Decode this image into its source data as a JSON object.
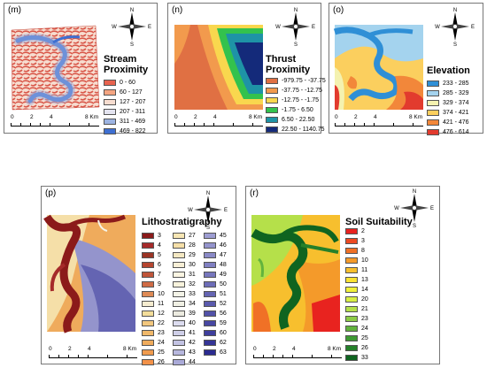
{
  "compass": {
    "n": "N",
    "s": "S",
    "e": "E",
    "w": "W"
  },
  "scale": {
    "ticks": [
      "0",
      "2",
      "4",
      "8 Km"
    ]
  },
  "panels": {
    "m": {
      "label": "(m)",
      "title": "Stream Proximity",
      "legend": [
        {
          "label": "0 - 60",
          "color": "#e8634f"
        },
        {
          "label": "60 - 127",
          "color": "#f4a582"
        },
        {
          "label": "127 - 207",
          "color": "#f7ddd0"
        },
        {
          "label": "207 - 311",
          "color": "#e4e4f0"
        },
        {
          "label": "311 - 469",
          "color": "#9db4e2"
        },
        {
          "label": "469 - 822",
          "color": "#3e6fd1"
        }
      ]
    },
    "n": {
      "label": "(n)",
      "title": "Thrust Proximity",
      "legend": [
        {
          "label": "-979.75 - -37.75",
          "color": "#e07043"
        },
        {
          "label": "-37.75 - -12.75",
          "color": "#f29a4d"
        },
        {
          "label": "-12.75 - -1.75",
          "color": "#f9d74e"
        },
        {
          "label": "-1.75 - 6.50",
          "color": "#33c24d"
        },
        {
          "label": "6.50 - 22.50",
          "color": "#1e93a6"
        },
        {
          "label": "22.50 - 1140.75",
          "color": "#142a7a"
        }
      ]
    },
    "o": {
      "label": "(o)",
      "title": "Elevation",
      "legend": [
        {
          "label": "233 - 285",
          "color": "#2f8fd6"
        },
        {
          "label": "285 - 329",
          "color": "#a4d3ee"
        },
        {
          "label": "329 - 374",
          "color": "#f4f2b0"
        },
        {
          "label": "374 - 421",
          "color": "#fbcf5e"
        },
        {
          "label": "421 - 476",
          "color": "#f2873a"
        },
        {
          "label": "476 - 614",
          "color": "#e23b2e"
        }
      ]
    },
    "p": {
      "label": "(p)",
      "title": "Lithostratigraphy",
      "legend_col1": [
        {
          "label": "3",
          "color": "#8b1a1a"
        },
        {
          "label": "4",
          "color": "#a52a2a"
        },
        {
          "label": "5",
          "color": "#9a3324"
        },
        {
          "label": "6",
          "color": "#b5452f"
        },
        {
          "label": "7",
          "color": "#c0553a"
        },
        {
          "label": "9",
          "color": "#cf6b45"
        },
        {
          "label": "10",
          "color": "#de8a55"
        },
        {
          "label": "11",
          "color": "#f5ecd0"
        },
        {
          "label": "12",
          "color": "#f3dd9a"
        },
        {
          "label": "22",
          "color": "#f2c77e"
        },
        {
          "label": "23",
          "color": "#f0b86a"
        },
        {
          "label": "24",
          "color": "#efab5c"
        },
        {
          "label": "25",
          "color": "#f09b4e"
        },
        {
          "label": "26",
          "color": "#f29148"
        }
      ],
      "legend_col2": [
        {
          "label": "27",
          "color": "#f7e6b4"
        },
        {
          "label": "28",
          "color": "#f5dfa8"
        },
        {
          "label": "29",
          "color": "#f4e8c2"
        },
        {
          "label": "30",
          "color": "#f7efd6"
        },
        {
          "label": "31",
          "color": "#fbf5e2"
        },
        {
          "label": "32",
          "color": "#f8f3dc"
        },
        {
          "label": "33",
          "color": "#f4f4e8"
        },
        {
          "label": "34",
          "color": "#f0f0e4"
        },
        {
          "label": "39",
          "color": "#ecebe0"
        },
        {
          "label": "40",
          "color": "#dcdcef"
        },
        {
          "label": "41",
          "color": "#cfcfe8"
        },
        {
          "label": "42",
          "color": "#c3c3e3"
        },
        {
          "label": "43",
          "color": "#b7b7de"
        },
        {
          "label": "44",
          "color": "#aaaad8"
        }
      ],
      "legend_col3": [
        {
          "label": "45",
          "color": "#9d9dd2"
        },
        {
          "label": "46",
          "color": "#9494cc"
        },
        {
          "label": "47",
          "color": "#8a8ac7"
        },
        {
          "label": "48",
          "color": "#8080c2"
        },
        {
          "label": "49",
          "color": "#7777bd"
        },
        {
          "label": "50",
          "color": "#6d6db8"
        },
        {
          "label": "51",
          "color": "#6464b2"
        },
        {
          "label": "52",
          "color": "#5a5aad"
        },
        {
          "label": "56",
          "color": "#5151a8"
        },
        {
          "label": "59",
          "color": "#4747a2"
        },
        {
          "label": "60",
          "color": "#3e3e9c"
        },
        {
          "label": "62",
          "color": "#353596"
        },
        {
          "label": "63",
          "color": "#2b2b90"
        }
      ]
    },
    "r": {
      "label": "(r)",
      "title": "Soil Suitability",
      "legend": [
        {
          "label": "2",
          "color": "#e8231f"
        },
        {
          "label": "3",
          "color": "#ec4a22"
        },
        {
          "label": "8",
          "color": "#f07126"
        },
        {
          "label": "10",
          "color": "#f49a2a"
        },
        {
          "label": "11",
          "color": "#f7bf2e"
        },
        {
          "label": "13",
          "color": "#fae233"
        },
        {
          "label": "14",
          "color": "#f0f03a"
        },
        {
          "label": "20",
          "color": "#d8ee44"
        },
        {
          "label": "21",
          "color": "#b5e04a"
        },
        {
          "label": "23",
          "color": "#8ccc46"
        },
        {
          "label": "24",
          "color": "#62b33d"
        },
        {
          "label": "25",
          "color": "#3e9a34"
        },
        {
          "label": "26",
          "color": "#25802a"
        },
        {
          "label": "33",
          "color": "#0f6420"
        }
      ]
    }
  }
}
